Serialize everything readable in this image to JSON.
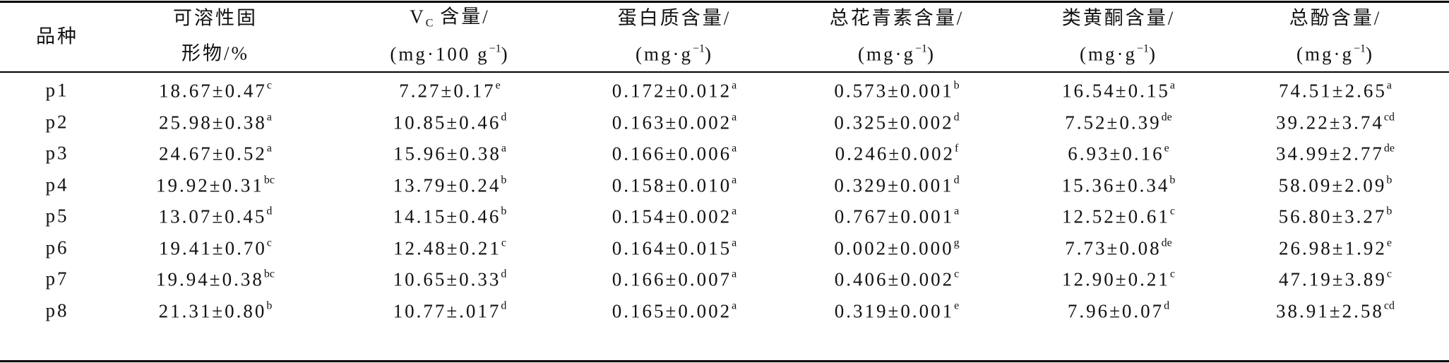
{
  "table": {
    "header": [
      [
        [
          {
            "text": "品种"
          }
        ]
      ],
      [
        [
          {
            "text": "可溶性固"
          }
        ],
        [
          {
            "text": "形物/%"
          }
        ]
      ],
      [
        [
          {
            "text": "V"
          },
          {
            "text": "C",
            "pos": "sub"
          },
          {
            "text": " 含量/"
          }
        ],
        [
          {
            "text": "(mg·100 g"
          },
          {
            "text": "−1",
            "pos": "sup"
          },
          {
            "text": ")"
          }
        ]
      ],
      [
        [
          {
            "text": "蛋白质含量/"
          }
        ],
        [
          {
            "text": "(mg·g"
          },
          {
            "text": "−1",
            "pos": "sup"
          },
          {
            "text": ")"
          }
        ]
      ],
      [
        [
          {
            "text": "总花青素含量/"
          }
        ],
        [
          {
            "text": "(mg·g"
          },
          {
            "text": "−1",
            "pos": "sup"
          },
          {
            "text": ")"
          }
        ]
      ],
      [
        [
          {
            "text": "类黄酮含量/"
          }
        ],
        [
          {
            "text": "(mg·g"
          },
          {
            "text": "−1",
            "pos": "sup"
          },
          {
            "text": ")"
          }
        ]
      ],
      [
        [
          {
            "text": "总酚含量/"
          }
        ],
        [
          {
            "text": "(mg·g"
          },
          {
            "text": "−1",
            "pos": "sup"
          },
          {
            "text": ")"
          }
        ]
      ]
    ],
    "rows": [
      {
        "name": "p1",
        "cells": [
          {
            "value": "18.67±0.47",
            "sig": "c"
          },
          {
            "value": "7.27±0.17",
            "sig": "e"
          },
          {
            "value": "0.172±0.012",
            "sig": "a"
          },
          {
            "value": "0.573±0.001",
            "sig": "b"
          },
          {
            "value": "16.54±0.15",
            "sig": "a"
          },
          {
            "value": "74.51±2.65",
            "sig": "a"
          }
        ]
      },
      {
        "name": "p2",
        "cells": [
          {
            "value": "25.98±0.38",
            "sig": "a"
          },
          {
            "value": "10.85±0.46",
            "sig": "d"
          },
          {
            "value": "0.163±0.002",
            "sig": "a"
          },
          {
            "value": "0.325±0.002",
            "sig": "d"
          },
          {
            "value": "7.52±0.39",
            "sig": "de"
          },
          {
            "value": "39.22±3.74",
            "sig": "cd"
          }
        ]
      },
      {
        "name": "p3",
        "cells": [
          {
            "value": "24.67±0.52",
            "sig": "a"
          },
          {
            "value": "15.96±0.38",
            "sig": "a"
          },
          {
            "value": "0.166±0.006",
            "sig": "a"
          },
          {
            "value": "0.246±0.002",
            "sig": "f"
          },
          {
            "value": "6.93±0.16",
            "sig": "e"
          },
          {
            "value": "34.99±2.77",
            "sig": "de"
          }
        ]
      },
      {
        "name": "p4",
        "cells": [
          {
            "value": "19.92±0.31",
            "sig": "bc"
          },
          {
            "value": "13.79±0.24",
            "sig": "b"
          },
          {
            "value": "0.158±0.010",
            "sig": "a"
          },
          {
            "value": "0.329±0.001",
            "sig": "d"
          },
          {
            "value": "15.36±0.34",
            "sig": "b"
          },
          {
            "value": "58.09±2.09",
            "sig": "b"
          }
        ]
      },
      {
        "name": "p5",
        "cells": [
          {
            "value": "13.07±0.45",
            "sig": "d"
          },
          {
            "value": "14.15±0.46",
            "sig": "b"
          },
          {
            "value": "0.154±0.002",
            "sig": "a"
          },
          {
            "value": "0.767±0.001",
            "sig": "a"
          },
          {
            "value": "12.52±0.61",
            "sig": "c"
          },
          {
            "value": "56.80±3.27",
            "sig": "b"
          }
        ]
      },
      {
        "name": "p6",
        "cells": [
          {
            "value": "19.41±0.70",
            "sig": "c"
          },
          {
            "value": "12.48±0.21",
            "sig": "c"
          },
          {
            "value": "0.164±0.015",
            "sig": "a"
          },
          {
            "value": "0.002±0.000",
            "sig": "g"
          },
          {
            "value": "7.73±0.08",
            "sig": "de"
          },
          {
            "value": "26.98±1.92",
            "sig": "e"
          }
        ]
      },
      {
        "name": "p7",
        "cells": [
          {
            "value": "19.94±0.38",
            "sig": "bc"
          },
          {
            "value": "10.65±0.33",
            "sig": "d"
          },
          {
            "value": "0.166±0.007",
            "sig": "a"
          },
          {
            "value": "0.406±0.002",
            "sig": "c"
          },
          {
            "value": "12.90±0.21",
            "sig": "c"
          },
          {
            "value": "47.19±3.89",
            "sig": "c"
          }
        ]
      },
      {
        "name": "p8",
        "cells": [
          {
            "value": "21.31±0.80",
            "sig": "b"
          },
          {
            "value": "10.77±.017",
            "sig": "d"
          },
          {
            "value": "0.165±0.002",
            "sig": "a"
          },
          {
            "value": "0.319±0.001",
            "sig": "e"
          },
          {
            "value": "7.96±0.07",
            "sig": "d"
          },
          {
            "value": "38.91±2.58",
            "sig": "cd"
          }
        ]
      }
    ]
  }
}
